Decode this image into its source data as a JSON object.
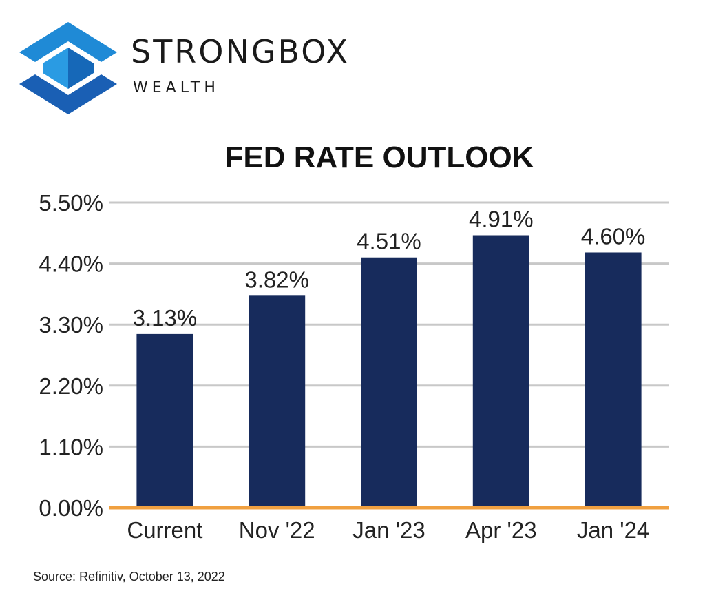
{
  "brand": {
    "name": "STRONGBOX",
    "subtitle": "WEALTH",
    "logo_icon": "strongbox-cube-icon",
    "logo_colors": [
      "#1f8ad6",
      "#1a5fb4"
    ]
  },
  "source": "Source: Refinitiv, October 13, 2022",
  "colors": {
    "bar": "#172b5c",
    "baseline": "#f0a040",
    "grid": "#c8c8c8"
  },
  "chart_data": {
    "type": "bar",
    "title": "FED RATE OUTLOOK",
    "xlabel": "",
    "ylabel": "",
    "categories": [
      "Current",
      "Nov '22",
      "Jan '23",
      "Apr '23",
      "Jan '24"
    ],
    "values": [
      3.13,
      3.82,
      4.51,
      4.91,
      4.6
    ],
    "value_labels": [
      "3.13%",
      "3.82%",
      "4.51%",
      "4.91%",
      "4.60%"
    ],
    "ylim": [
      0,
      5.5
    ],
    "yticks": [
      0,
      1.1,
      2.2,
      3.3,
      4.4,
      5.5
    ],
    "ytick_labels": [
      "0.00%",
      "1.10%",
      "2.20%",
      "3.30%",
      "4.40%",
      "5.50%"
    ],
    "grid": true,
    "legend": "none"
  }
}
